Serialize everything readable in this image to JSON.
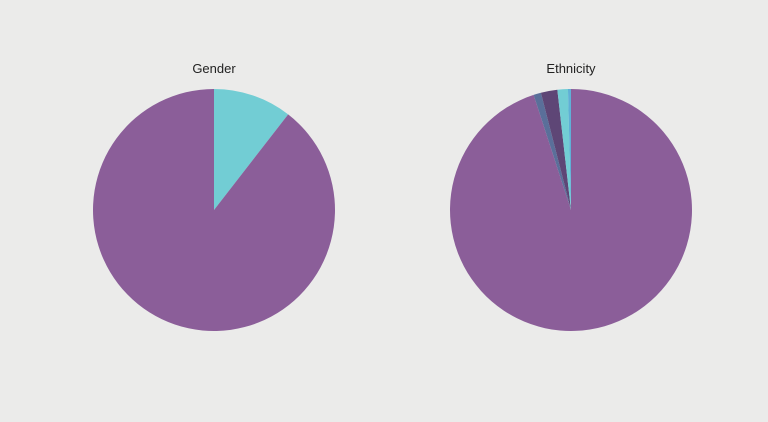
{
  "colors": {
    "background": "#ebebea",
    "purple": "#8b5e99",
    "teal": "#72cdd4",
    "slate_blue": "#5a6f9a",
    "dark_purple": "#5e4676",
    "light_blue": "#5fb0d6"
  },
  "chart_data": [
    {
      "type": "pie",
      "title": "Gender",
      "start_angle_deg": 0,
      "direction": "clockwise",
      "slices": [
        {
          "value": 10.5,
          "color": "#72cdd4"
        },
        {
          "value": 89.5,
          "color": "#8b5e99"
        }
      ]
    },
    {
      "type": "pie",
      "title": "Ethnicity",
      "start_angle_deg": 0,
      "direction": "clockwise",
      "slices": [
        {
          "value": 95.0,
          "color": "#8b5e99"
        },
        {
          "value": 1.0,
          "color": "#5a6f9a"
        },
        {
          "value": 2.2,
          "color": "#5e4676"
        },
        {
          "value": 1.4,
          "color": "#72cdd4"
        },
        {
          "value": 0.4,
          "color": "#5fb0d6"
        }
      ]
    }
  ]
}
